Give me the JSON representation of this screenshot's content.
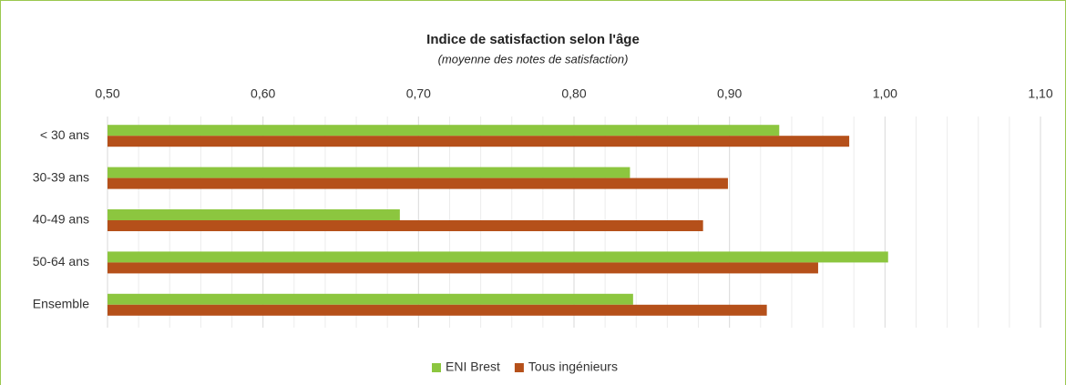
{
  "chart_data": {
    "type": "hbar",
    "title": "Indice de satisfaction selon l'âge",
    "subtitle": "(moyenne des notes de satisfaction)",
    "categories": [
      "< 30 ans",
      "30-39 ans",
      "40-49 ans",
      "50-64 ans",
      "Ensemble"
    ],
    "series": [
      {
        "name": "ENI Brest",
        "color": "#8cc63f",
        "values": [
          0.932,
          0.836,
          0.688,
          1.002,
          0.838
        ]
      },
      {
        "name": "Tous ingénieurs",
        "color": "#b5501a",
        "values": [
          0.977,
          0.899,
          0.883,
          0.957,
          0.924
        ]
      }
    ],
    "xlim": [
      0.5,
      1.1
    ],
    "xticks": [
      {
        "value": 0.5,
        "label": "0,50"
      },
      {
        "value": 0.6,
        "label": "0,60"
      },
      {
        "value": 0.7,
        "label": "0,70"
      },
      {
        "value": 0.8,
        "label": "0,80"
      },
      {
        "value": 0.9,
        "label": "0,90"
      },
      {
        "value": 1.0,
        "label": "1,00"
      },
      {
        "value": 1.1,
        "label": "1,10"
      }
    ],
    "minor_xticks": [
      0.52,
      0.54,
      0.56,
      0.58,
      0.62,
      0.64,
      0.66,
      0.68,
      0.72,
      0.74,
      0.76,
      0.78,
      0.82,
      0.84,
      0.86,
      0.88,
      0.92,
      0.94,
      0.96,
      0.98,
      1.02,
      1.04,
      1.06,
      1.08
    ],
    "grid": true,
    "legend": "bottom"
  }
}
